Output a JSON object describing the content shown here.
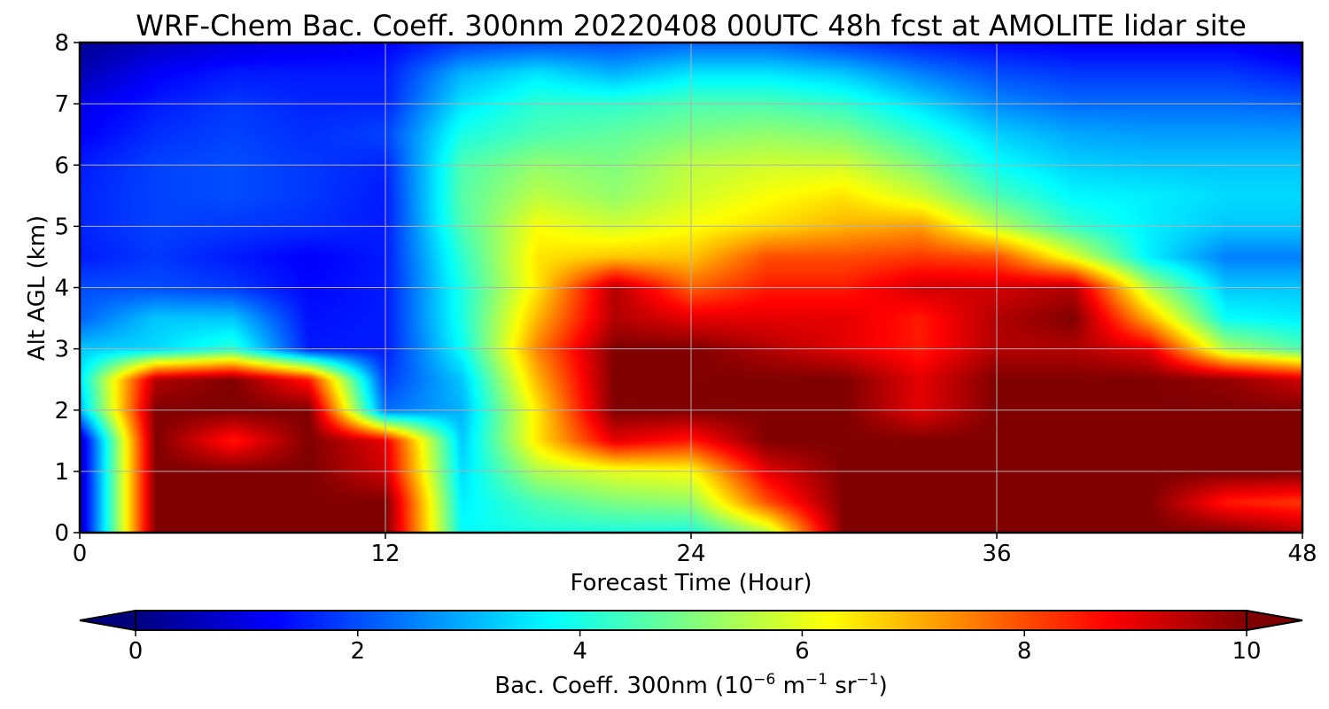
{
  "chart_data": {
    "type": "heatmap",
    "title": "WRF-Chem Bac. Coeff. 300nm  20220408 00UTC 48h fcst at AMOLITE lidar site",
    "xlabel": "Forecast Time (Hour)",
    "ylabel": "Alt AGL (km)",
    "xlim": [
      0,
      48
    ],
    "ylim": [
      0,
      8
    ],
    "xticks": [
      "0",
      "12",
      "24",
      "36",
      "48"
    ],
    "yticks": [
      "0",
      "1",
      "2",
      "3",
      "4",
      "5",
      "6",
      "7",
      "8"
    ],
    "grid": true,
    "colorbar": {
      "label_main": "Bac. Coeff. 300nm  (10",
      "exp1": "−6",
      "label_mid": " m",
      "exp2": "−1",
      "label_mid2": " sr",
      "exp3": "−1",
      "label_end": ")",
      "ticks": [
        "0",
        "2",
        "4",
        "6",
        "8",
        "10"
      ],
      "range": [
        0,
        10
      ],
      "extend": "both",
      "colormap": "jet",
      "placement": "bottom"
    },
    "x": [
      0,
      3,
      6,
      9,
      12,
      15,
      18,
      21,
      24,
      27,
      30,
      33,
      36,
      39,
      42,
      45,
      48
    ],
    "y": [
      0,
      0.5,
      1,
      1.5,
      2,
      2.5,
      3,
      3.5,
      4,
      4.5,
      5,
      5.5,
      6,
      6.5,
      7,
      7.5,
      8
    ],
    "z": [
      [
        0.5,
        10,
        10,
        10,
        10,
        3.8,
        4,
        4,
        4,
        5.5,
        10,
        10,
        10,
        10,
        10,
        10,
        9.5
      ],
      [
        0.5,
        10,
        10,
        10,
        10,
        3.6,
        4.5,
        5,
        5.2,
        8,
        10,
        10,
        10,
        10,
        10,
        8.5,
        8.2
      ],
      [
        0.5,
        10,
        10,
        10,
        9.2,
        3.4,
        5.5,
        6,
        6.2,
        9,
        10,
        10,
        10,
        10,
        10,
        10,
        10
      ],
      [
        0.5,
        10,
        8.5,
        10,
        9,
        3.2,
        6.5,
        9,
        8.5,
        10,
        10,
        10,
        10,
        10,
        10,
        10,
        10
      ],
      [
        3,
        10,
        10,
        10,
        2.3,
        3,
        6.5,
        10,
        10,
        10,
        10,
        9,
        10,
        10,
        10,
        10,
        10
      ],
      [
        3.5,
        9.5,
        10,
        8.5,
        1.8,
        3.2,
        7,
        10,
        10,
        10,
        10,
        9,
        10,
        10,
        10,
        9.8,
        9.2
      ],
      [
        3.2,
        3.4,
        4.2,
        1.5,
        1.5,
        3.8,
        7.5,
        10,
        10,
        9.5,
        9,
        8.5,
        9.5,
        9.5,
        9,
        5.5,
        4.5
      ],
      [
        2.2,
        3.2,
        3.2,
        1.4,
        1.5,
        4,
        7,
        9.5,
        9,
        9,
        9,
        8.5,
        9.5,
        10,
        7,
        3.8,
        3.6
      ],
      [
        2,
        2,
        1.8,
        1.3,
        1.5,
        4,
        6.5,
        9.5,
        7.8,
        8.5,
        8.5,
        9.2,
        9.2,
        9.5,
        5.5,
        3.2,
        3.2
      ],
      [
        1.5,
        1.8,
        1.5,
        1.2,
        1.5,
        4.2,
        6.5,
        6.8,
        6.8,
        8,
        8,
        8.2,
        8,
        6,
        3.6,
        2.5,
        2.5
      ],
      [
        1.6,
        1.9,
        1.8,
        1.7,
        1.5,
        4.5,
        6.2,
        5.8,
        6.2,
        6.6,
        7,
        7.2,
        5.6,
        4.3,
        3.6,
        3.2,
        3.2
      ],
      [
        1.6,
        1.9,
        2,
        1.8,
        1.5,
        4.6,
        5.6,
        5.2,
        5.8,
        6.2,
        6.5,
        5.8,
        4.5,
        3.7,
        3.6,
        3.4,
        3.4
      ],
      [
        1.5,
        1.9,
        2,
        1.8,
        1.6,
        4.5,
        5.2,
        5,
        5.6,
        5.8,
        5.8,
        5,
        3.8,
        3.3,
        3.2,
        3.2,
        3.2
      ],
      [
        1.2,
        1.7,
        1.9,
        1.7,
        1.9,
        4,
        4.5,
        4.7,
        5,
        5.2,
        5,
        4.2,
        3.3,
        2.9,
        2.8,
        2.8,
        2.8
      ],
      [
        1,
        1.5,
        1.8,
        1.6,
        1.6,
        3.5,
        4.2,
        4.2,
        4.5,
        4.5,
        4.2,
        3.4,
        2.6,
        2.3,
        2.3,
        2.3,
        2.2
      ],
      [
        0.5,
        1.2,
        1.5,
        1.5,
        1.5,
        3,
        3.5,
        3,
        3.5,
        3.5,
        3.2,
        2.5,
        2,
        1.8,
        1.8,
        1.8,
        1.5
      ],
      [
        0.2,
        0.6,
        0.9,
        1,
        1.2,
        1.8,
        2,
        2,
        2.2,
        2.2,
        1.8,
        1.5,
        1.3,
        1.2,
        1.2,
        1.2,
        0.8
      ]
    ]
  }
}
